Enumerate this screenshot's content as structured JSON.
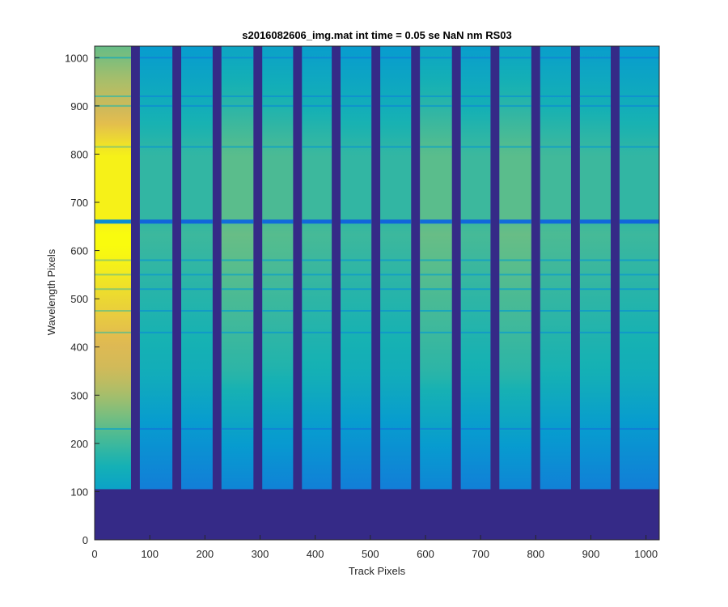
{
  "chart_data": {
    "type": "heatmap",
    "title": "s2016082606_img.mat int time = 0.05 se  NaN nm RS03",
    "xlabel": "Track Pixels",
    "ylabel": "Wavelength Pixels",
    "xlim": [
      0,
      1024
    ],
    "ylim": [
      0,
      1024
    ],
    "xticks": [
      0,
      100,
      200,
      300,
      400,
      500,
      600,
      700,
      800,
      900,
      1000
    ],
    "yticks": [
      0,
      100,
      200,
      300,
      400,
      500,
      600,
      700,
      800,
      900,
      1000
    ],
    "grid": false,
    "colormap": "parula",
    "colors": {
      "background": "#352a87",
      "axes": "#262626"
    },
    "tracks": [
      {
        "x_start": 0,
        "x_end": 66,
        "level": 0.95
      },
      {
        "x_start": 82,
        "x_end": 141,
        "level": 0.5
      },
      {
        "x_start": 157,
        "x_end": 214,
        "level": 0.5
      },
      {
        "x_start": 230,
        "x_end": 288,
        "level": 0.58
      },
      {
        "x_start": 304,
        "x_end": 360,
        "level": 0.55
      },
      {
        "x_start": 376,
        "x_end": 430,
        "level": 0.52
      },
      {
        "x_start": 446,
        "x_end": 502,
        "level": 0.5
      },
      {
        "x_start": 518,
        "x_end": 574,
        "level": 0.5
      },
      {
        "x_start": 590,
        "x_end": 648,
        "level": 0.58
      },
      {
        "x_start": 664,
        "x_end": 718,
        "level": 0.52
      },
      {
        "x_start": 734,
        "x_end": 792,
        "level": 0.58
      },
      {
        "x_start": 808,
        "x_end": 864,
        "level": 0.53
      },
      {
        "x_start": 880,
        "x_end": 936,
        "level": 0.52
      },
      {
        "x_start": 952,
        "x_end": 1024,
        "level": 0.5
      }
    ],
    "signal_y_range": [
      105,
      1024
    ],
    "absorption_lines_y": [
      660,
      550,
      580,
      815,
      900,
      475,
      230,
      430,
      520,
      920,
      1000
    ]
  }
}
